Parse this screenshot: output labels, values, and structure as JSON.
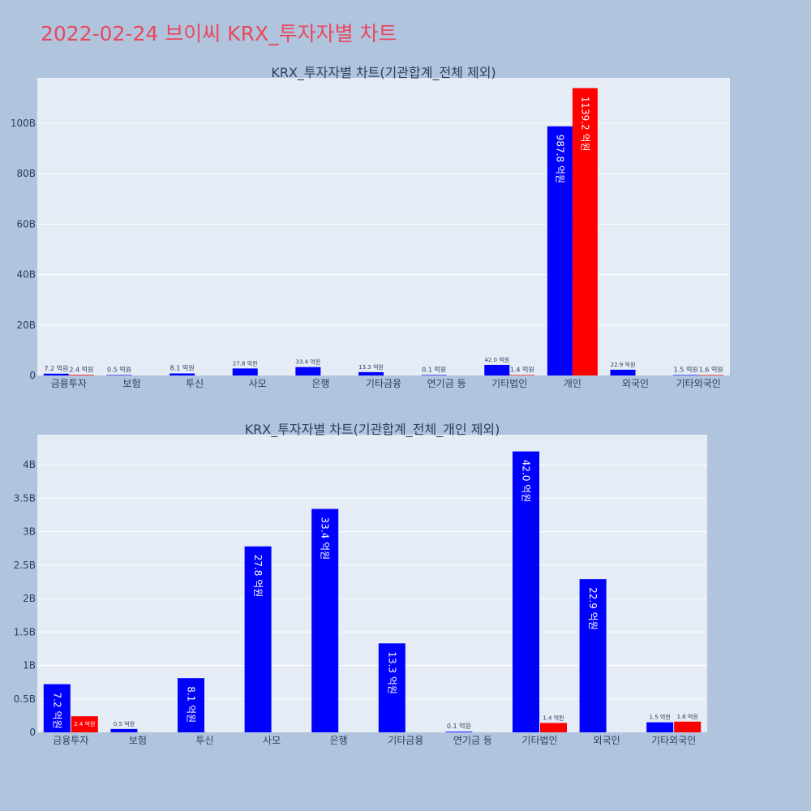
{
  "page": {
    "title": "2022-02-24 브이씨 KRX_투자자별 차트"
  },
  "colors": {
    "page_bg": "#b0c4de",
    "plot_bg": "#e5ecf6",
    "title": "#e8475d",
    "series_buy": "#0000ff",
    "series_sell": "#ff0000"
  },
  "chart_data": [
    {
      "type": "bar",
      "title": "KRX_투자자별 차트(기관합계_전체 제외)",
      "categories": [
        "금융투자",
        "보험",
        "투신",
        "사모",
        "은행",
        "기타금융",
        "연기금 등",
        "기타법인",
        "개인",
        "외국인",
        "기타외국인"
      ],
      "series": [
        {
          "color": "#0000ff",
          "values": [
            720000000,
            50000000,
            810000000,
            2780000000,
            3340000000,
            1330000000,
            10000000,
            4200000000,
            98780000000,
            2290000000,
            150000000
          ],
          "labels": [
            "7.2 억원",
            "0.5 억원",
            "8.1 억원",
            "27.8 억원",
            "33.4 억원",
            "13.3 억원",
            "0.1 억원",
            "42.0 억원",
            "987.8 억원",
            "22.9 억원",
            "1.5 억원"
          ]
        },
        {
          "color": "#ff0000",
          "values": [
            240000000,
            null,
            null,
            null,
            null,
            null,
            null,
            140000000,
            113920000000,
            null,
            160000000
          ],
          "labels": [
            "2.4 억원",
            null,
            null,
            null,
            null,
            null,
            null,
            "1.4 억원",
            "1139.2 억원",
            null,
            "1.6 억원"
          ]
        }
      ],
      "ylim": [
        0,
        118000000000
      ],
      "yticks": [
        0,
        20000000000,
        40000000000,
        60000000000,
        80000000000,
        100000000000
      ],
      "ytick_labels": [
        "0",
        "20B",
        "40B",
        "60B",
        "80B",
        "100B"
      ],
      "legend": "none",
      "grid": true
    },
    {
      "type": "bar",
      "title": "KRX_투자자별 차트(기관합계_전체_개인 제외)",
      "categories": [
        "금융투자",
        "보험",
        "투신",
        "사모",
        "은행",
        "기타금융",
        "연기금 등",
        "기타법인",
        "외국인",
        "기타외국인"
      ],
      "series": [
        {
          "color": "#0000ff",
          "values": [
            720000000,
            50000000,
            810000000,
            2780000000,
            3340000000,
            1330000000,
            10000000,
            4200000000,
            2290000000,
            150000000
          ],
          "labels": [
            "7.2 억원",
            "0.5 억원",
            "8.1 억원",
            "27.8 억원",
            "33.4 억원",
            "13.3 억원",
            "0.1 억원",
            "42.0 억원",
            "22.9 억원",
            "1.5 억원"
          ]
        },
        {
          "color": "#ff0000",
          "values": [
            240000000,
            null,
            null,
            null,
            null,
            null,
            null,
            140000000,
            null,
            160000000
          ],
          "labels": [
            "2.4 억원",
            null,
            null,
            null,
            null,
            null,
            null,
            "1.4 억원",
            null,
            "1.6 억원"
          ]
        }
      ],
      "ylim": [
        0,
        4450000000
      ],
      "yticks": [
        0,
        500000000,
        1000000000,
        1500000000,
        2000000000,
        2500000000,
        3000000000,
        3500000000,
        4000000000
      ],
      "ytick_labels": [
        "0",
        "0.5B",
        "1B",
        "1.5B",
        "2B",
        "2.5B",
        "3B",
        "3.5B",
        "4B"
      ],
      "legend": "none",
      "grid": true
    }
  ]
}
